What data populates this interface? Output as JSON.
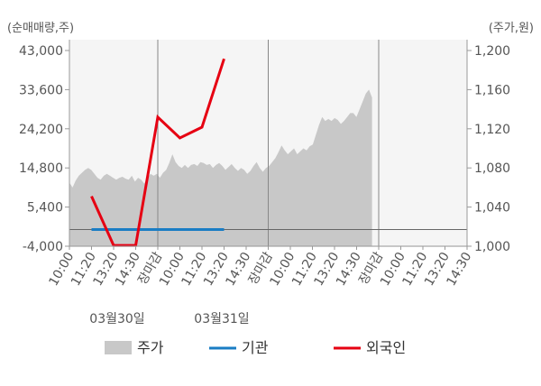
{
  "chart_data": {
    "type": "line",
    "left_unit_label": "(순매매량,주)",
    "right_unit_label": "(주가,원)",
    "left_axis": {
      "ylim": [
        -4000,
        43000
      ],
      "ticks": [
        "43,000",
        "33,600",
        "24,200",
        "14,800",
        "5,400",
        "-4,000"
      ]
    },
    "right_axis": {
      "ylim": [
        1000,
        1200
      ],
      "ticks": [
        "1,200",
        "1,160",
        "1,120",
        "1,080",
        "1,040",
        "1,000"
      ]
    },
    "x_tick_labels": [
      {
        "text": "10:00",
        "color": "#555555"
      },
      {
        "text": "11:20",
        "color": "#555555"
      },
      {
        "text": "13:20",
        "color": "#555555"
      },
      {
        "text": "14:30",
        "color": "#555555"
      },
      {
        "text": "장마감",
        "color": "#e60012"
      },
      {
        "text": "10:00",
        "color": "#555555"
      },
      {
        "text": "11:20",
        "color": "#555555"
      },
      {
        "text": "13:20",
        "color": "#555555"
      },
      {
        "text": "14:30",
        "color": "#555555"
      },
      {
        "text": "장마감",
        "color": "#e60012"
      },
      {
        "text": "10:00",
        "color": "#555555"
      },
      {
        "text": "11:20",
        "color": "#555555"
      },
      {
        "text": "13:20",
        "color": "#555555"
      },
      {
        "text": "14:30",
        "color": "#555555"
      },
      {
        "text": "장마감",
        "color": "#e60012"
      },
      {
        "text": "10:00",
        "color": "#111111"
      },
      {
        "text": "11:20",
        "color": "#555555"
      },
      {
        "text": "13:20",
        "color": "#555555"
      },
      {
        "text": "14:30",
        "color": "#555555"
      }
    ],
    "date_labels": [
      "03월30일",
      "03월31일"
    ],
    "grid_x_categories": [
      4,
      9,
      14
    ],
    "series": [
      {
        "name": "주가",
        "kind": "area",
        "axis": "right",
        "color": "#c8c8c8",
        "x_range": [
          0,
          13.7
        ],
        "values": [
          1065,
          1060,
          1067,
          1072,
          1075,
          1078,
          1080,
          1078,
          1074,
          1070,
          1068,
          1072,
          1074,
          1072,
          1070,
          1068,
          1070,
          1071,
          1069,
          1068,
          1072,
          1066,
          1070,
          1068,
          1064,
          1070,
          1074,
          1072,
          1074,
          1070,
          1075,
          1078,
          1085,
          1094,
          1086,
          1082,
          1080,
          1083,
          1080,
          1083,
          1084,
          1082,
          1086,
          1085,
          1083,
          1084,
          1080,
          1083,
          1085,
          1082,
          1078,
          1081,
          1084,
          1080,
          1077,
          1080,
          1078,
          1074,
          1077,
          1082,
          1086,
          1080,
          1076,
          1080,
          1082,
          1086,
          1090,
          1096,
          1103,
          1098,
          1094,
          1097,
          1100,
          1094,
          1097,
          1100,
          1098,
          1102,
          1104,
          1114,
          1124,
          1132,
          1128,
          1130,
          1128,
          1131,
          1129,
          1125,
          1128,
          1132,
          1136,
          1136,
          1132,
          1140,
          1148,
          1156,
          1160,
          1152
        ]
      },
      {
        "name": "기관",
        "kind": "line",
        "axis": "left",
        "color": "#1a7dc4",
        "x": [
          1,
          7
        ],
        "values": [
          0,
          0
        ]
      },
      {
        "name": "외국인",
        "kind": "line",
        "axis": "left",
        "color": "#e60012",
        "x": [
          1,
          2,
          3,
          4,
          5,
          6,
          7
        ],
        "values": [
          8000,
          -3800,
          -3800,
          27000,
          22000,
          24600,
          41000
        ]
      }
    ],
    "legend": {
      "placement": "bottom",
      "items": [
        {
          "label": "주가",
          "kind": "area",
          "color": "#c8c8c8"
        },
        {
          "label": "기관",
          "kind": "line",
          "color": "#1a7dc4"
        },
        {
          "label": "외국인",
          "kind": "line",
          "color": "#e60012"
        }
      ]
    }
  }
}
